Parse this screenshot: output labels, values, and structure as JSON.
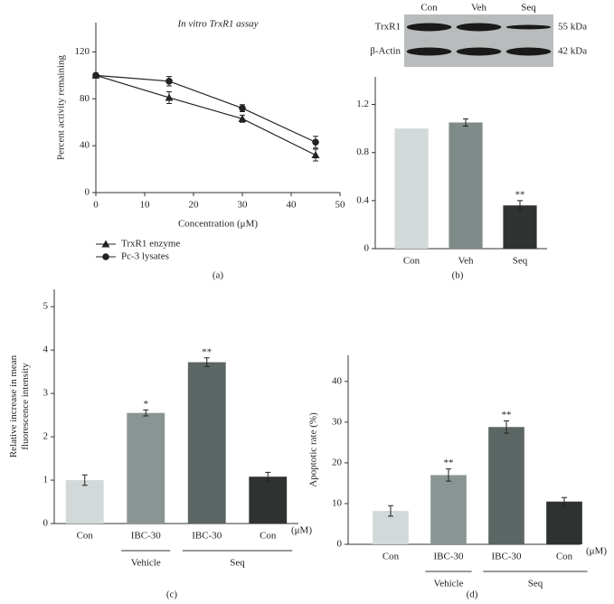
{
  "chart_data": [
    {
      "type": "line",
      "title": "In vitro TrxR1 assay",
      "xlabel": "Concentration (μM)",
      "ylabel": "Percent activity remaining",
      "x": [
        0,
        15,
        30,
        45
      ],
      "xlim": [
        0,
        50
      ],
      "xticks": [
        0,
        10,
        20,
        30,
        40,
        50
      ],
      "ylim": [
        0,
        145
      ],
      "yticks": [
        0,
        40,
        80,
        120
      ],
      "series": [
        {
          "name": "TrxR1 enzyme",
          "marker": "triangle",
          "color": "#222222",
          "values": [
            100,
            81,
            63,
            32
          ],
          "errors": [
            0,
            5,
            3,
            5
          ]
        },
        {
          "name": "Pc-3 lysates",
          "marker": "circle",
          "color": "#222222",
          "values": [
            100,
            95,
            72,
            43
          ],
          "errors": [
            0,
            4,
            3,
            5
          ]
        }
      ],
      "legend": "below",
      "panel_label": "(a)"
    },
    {
      "type": "bar",
      "categories": [
        "Con",
        "Veh",
        "Seq"
      ],
      "values": [
        1.0,
        1.05,
        0.36
      ],
      "errors": [
        0,
        0.03,
        0.04
      ],
      "colors": [
        "#d3d9d9",
        "#7f8b89",
        "#2f3432"
      ],
      "annotations": [
        null,
        null,
        "**"
      ],
      "ylim": [
        0,
        1.43
      ],
      "yticks": [
        0,
        0.4,
        0.8,
        1.2
      ],
      "panel_label": "(b)",
      "blot": {
        "lanes": [
          "Con",
          "Veh",
          "Seq"
        ],
        "rows": [
          {
            "label": "TrxR1",
            "size": "55 kDa"
          },
          {
            "label": "β-Actin",
            "size": "42 kDa"
          }
        ]
      }
    },
    {
      "type": "bar",
      "ylabel": [
        "Relative increase in mean",
        "fluorescence intensity"
      ],
      "categories": [
        "Con",
        "IBC-30",
        "IBC-30",
        "Con"
      ],
      "values": [
        1.0,
        2.55,
        3.72,
        1.08
      ],
      "errors": [
        0.12,
        0.07,
        0.1,
        0.1
      ],
      "colors": [
        "#d3d9d9",
        "#8a9593",
        "#5c6664",
        "#2e3331"
      ],
      "annotations": [
        null,
        "*",
        "**",
        null
      ],
      "group_labels": [
        null,
        "Vehicle",
        "Seq",
        "Seq"
      ],
      "x_unit": "(μM)",
      "ylim": [
        0,
        5.4
      ],
      "yticks": [
        0,
        1,
        2,
        3,
        4,
        5
      ],
      "panel_label": "(c)"
    },
    {
      "type": "bar",
      "ylabel": [
        "Apoptotic rate (%)"
      ],
      "categories": [
        "Con",
        "IBC-30",
        "IBC-30",
        "Con"
      ],
      "values": [
        8.2,
        17,
        28.8,
        10.5
      ],
      "errors": [
        1.3,
        1.5,
        1.5,
        1.0
      ],
      "colors": [
        "#d3d9d9",
        "#8a9593",
        "#5c6664",
        "#2e3331"
      ],
      "annotations": [
        null,
        "**",
        "**",
        null
      ],
      "group_labels": [
        null,
        "Vehicle",
        "Seq",
        "Seq"
      ],
      "x_unit": "(μM)",
      "ylim": [
        0,
        46.4
      ],
      "yticks": [
        0,
        10,
        20,
        30,
        40
      ],
      "panel_label": "(d)"
    }
  ]
}
